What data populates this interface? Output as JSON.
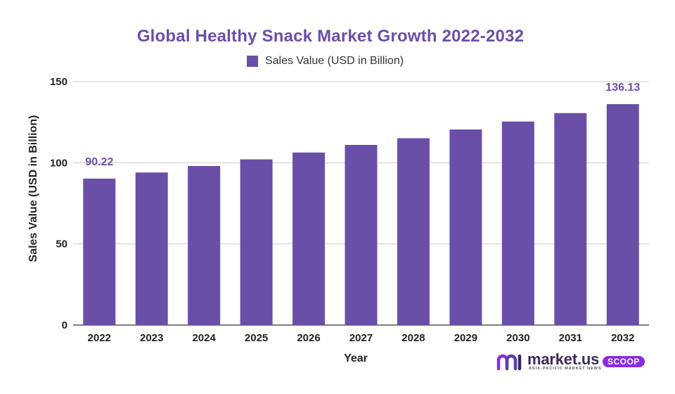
{
  "chart_data": {
    "type": "bar",
    "title": "Global Healthy Snack Market Growth 2022-2032",
    "legend": "top-center",
    "xlabel": "Year",
    "ylabel": "Sales Value (USD in Billion)",
    "ylim": [
      0,
      150
    ],
    "yticks": [
      0,
      50,
      100,
      150
    ],
    "grid": true,
    "categories": [
      "2022",
      "2023",
      "2024",
      "2025",
      "2026",
      "2027",
      "2028",
      "2029",
      "2030",
      "2031",
      "2032"
    ],
    "series": [
      {
        "name": "Sales Value (USD in Billion)",
        "color": "#6a4fa8",
        "values": [
          90.22,
          94.0,
          98.0,
          102.1,
          106.3,
          111.0,
          115.1,
          120.5,
          125.4,
          130.6,
          136.13
        ]
      }
    ],
    "data_labels": [
      {
        "index": 0,
        "text": "90.22"
      },
      {
        "index": 10,
        "text": "136.13"
      }
    ]
  },
  "brand": {
    "name": "market.us",
    "tagline": "ASIA-PACIFIC MARKET NEWS",
    "badge": "SCOOP",
    "icon": "market-us-logo-icon"
  }
}
